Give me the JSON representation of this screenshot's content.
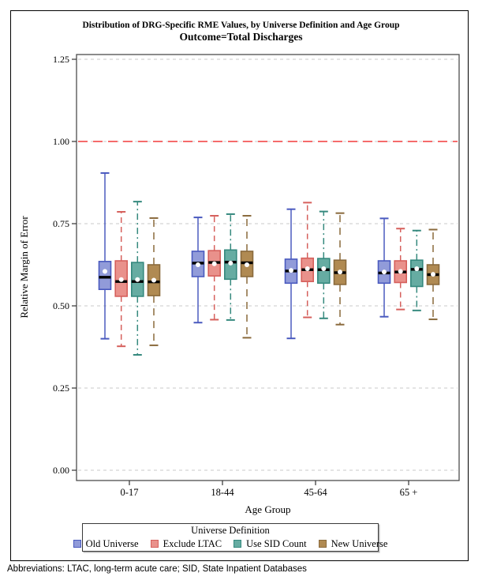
{
  "titles": {
    "line1": "Distribution of DRG-Specific RME Values, by Universe Definition and Age Group",
    "line2": "Outcome=Total Discharges"
  },
  "footnote": "Abbreviations: LTAC, long-term acute care; SID, State Inpatient Databases",
  "chart_data": {
    "type": "boxplot",
    "title": "Distribution of DRG-Specific RME Values, by Universe Definition and Age Group",
    "subtitle": "Outcome=Total Discharges",
    "xlabel": "Age Group",
    "ylabel": "Relative Margin of Error",
    "categories": [
      "0-17",
      "18-44",
      "45-64",
      "65 +"
    ],
    "yticks": [
      0.0,
      0.25,
      0.5,
      0.75,
      1.0,
      1.25
    ],
    "ylim": [
      -0.03,
      1.26
    ],
    "grid": "dashed-horizontal",
    "gridline_color": "#c9c9c9",
    "frame_color": "#4d4d4d",
    "reference_line": {
      "y": 1.0,
      "color": "#f23a3a",
      "style": "dashed"
    },
    "legend": {
      "title": "Universe Definition",
      "position": "bottom"
    },
    "series": [
      {
        "name": "Old Universe",
        "color": "#919BD9",
        "stroke": "#4A5ABF",
        "line_style": "solid",
        "boxes": [
          {
            "low": 0.4,
            "q1": 0.55,
            "median": 0.587,
            "mean": 0.605,
            "q3": 0.635,
            "high": 0.904
          },
          {
            "low": 0.449,
            "q1": 0.589,
            "median": 0.63,
            "mean": 0.625,
            "q3": 0.666,
            "high": 0.769
          },
          {
            "low": 0.401,
            "q1": 0.569,
            "median": 0.606,
            "mean": 0.608,
            "q3": 0.642,
            "high": 0.794
          },
          {
            "low": 0.467,
            "q1": 0.569,
            "median": 0.6,
            "mean": 0.603,
            "q3": 0.637,
            "high": 0.766
          }
        ]
      },
      {
        "name": "Exclude LTAC",
        "color": "#E9918B",
        "stroke": "#D6605C",
        "line_style": "dashed",
        "boxes": [
          {
            "low": 0.377,
            "q1": 0.529,
            "median": 0.574,
            "mean": 0.58,
            "q3": 0.637,
            "high": 0.786
          },
          {
            "low": 0.458,
            "q1": 0.591,
            "median": 0.632,
            "mean": 0.628,
            "q3": 0.668,
            "high": 0.774
          },
          {
            "low": 0.465,
            "q1": 0.574,
            "median": 0.61,
            "mean": 0.613,
            "q3": 0.645,
            "high": 0.814
          },
          {
            "low": 0.489,
            "q1": 0.571,
            "median": 0.603,
            "mean": 0.605,
            "q3": 0.637,
            "high": 0.735
          }
        ]
      },
      {
        "name": "Use SID Count",
        "color": "#66ACA2",
        "stroke": "#35897E",
        "line_style": "dashdot",
        "boxes": [
          {
            "low": 0.351,
            "q1": 0.529,
            "median": 0.574,
            "mean": 0.58,
            "q3": 0.632,
            "high": 0.817
          },
          {
            "low": 0.457,
            "q1": 0.581,
            "median": 0.633,
            "mean": 0.63,
            "q3": 0.67,
            "high": 0.779
          },
          {
            "low": 0.462,
            "q1": 0.569,
            "median": 0.61,
            "mean": 0.613,
            "q3": 0.644,
            "high": 0.787
          },
          {
            "low": 0.486,
            "q1": 0.559,
            "median": 0.611,
            "mean": 0.613,
            "q3": 0.639,
            "high": 0.729
          }
        ]
      },
      {
        "name": "New Universe",
        "color": "#B08A52",
        "stroke": "#8A6A3C",
        "line_style": "longdash",
        "boxes": [
          {
            "low": 0.38,
            "q1": 0.531,
            "median": 0.573,
            "mean": 0.578,
            "q3": 0.625,
            "high": 0.767
          },
          {
            "low": 0.403,
            "q1": 0.589,
            "median": 0.631,
            "mean": 0.625,
            "q3": 0.666,
            "high": 0.774
          },
          {
            "low": 0.443,
            "q1": 0.565,
            "median": 0.601,
            "mean": 0.603,
            "q3": 0.639,
            "high": 0.782
          },
          {
            "low": 0.459,
            "q1": 0.565,
            "median": 0.595,
            "mean": 0.596,
            "q3": 0.625,
            "high": 0.732
          }
        ]
      }
    ]
  }
}
